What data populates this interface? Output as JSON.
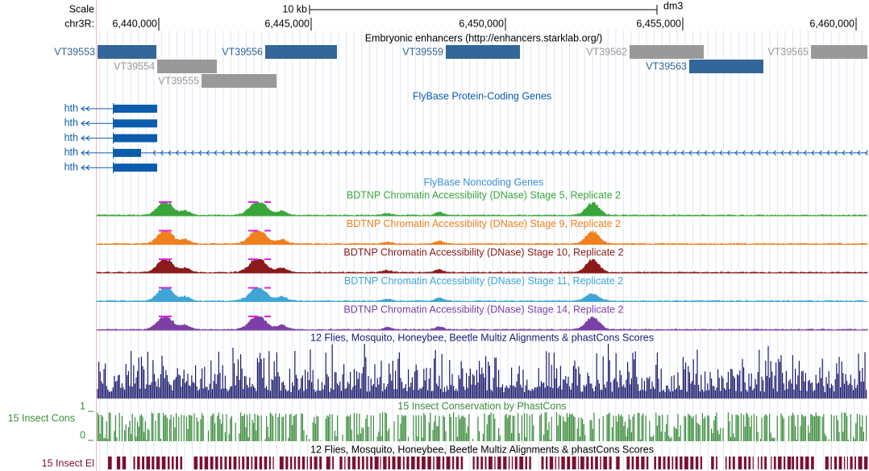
{
  "header": {
    "scale": "Scale",
    "scale_bar": "10 kb",
    "assembly": "dm3",
    "chrom": "chr3R:",
    "positions": [
      "6,440,000",
      "6,445,000",
      "6,450,000",
      "6,455,000",
      "6,460,000"
    ]
  },
  "enhancers": {
    "title": "Embryonic enhancers (http://enhancers.starklab.org/)",
    "items": [
      {
        "label": "VT39553",
        "color": "#336699"
      },
      {
        "label": "VT39554",
        "color": "#999999"
      },
      {
        "label": "VT39555",
        "color": "#999999"
      },
      {
        "label": "VT39556",
        "color": "#336699"
      },
      {
        "label": "VT39559",
        "color": "#336699"
      },
      {
        "label": "VT39562",
        "color": "#999999"
      },
      {
        "label": "VT39563",
        "color": "#336699"
      },
      {
        "label": "VT39565",
        "color": "#999999"
      }
    ]
  },
  "genes": {
    "title": "FlyBase Protein-Coding Genes",
    "color": "#0c5cad",
    "rows": [
      "hth",
      "hth",
      "hth",
      "hth",
      "hth"
    ]
  },
  "noncoding": {
    "title": "FlyBase Noncoding Genes",
    "color": "#3a8fd6"
  },
  "dnase": {
    "tracks": [
      {
        "title": "BDTNP Chromatin Accessibility (DNase) Stage 5, Replicate 2",
        "color": "#3aa63a"
      },
      {
        "title": "BDTNP Chromatin Accessibility (DNase) Stage 9, Replicate 2",
        "color": "#f0801e"
      },
      {
        "title": "BDTNP Chromatin Accessibility (DNase) Stage 10, Replicate 2",
        "color": "#8b1a1a"
      },
      {
        "title": "BDTNP Chromatin Accessibility (DNase) Stage 11, Replicate 2",
        "color": "#3fa5d6"
      },
      {
        "title": "BDTNP Chromatin Accessibility (DNase) Stage 14, Replicate 2",
        "color": "#7b3fa6"
      }
    ]
  },
  "multiz": {
    "title": "12 Flies, Mosquito, Honeybee, Beetle Multiz Alignments & phastCons Scores",
    "color": "#1a1a6e"
  },
  "cons": {
    "title": "15 Insect Conservation by PhastCons",
    "label": "15 Insect Cons",
    "axis_top": "1",
    "axis_bottom": "0",
    "color": "#3c8c3c"
  },
  "elements": {
    "title": "12 Flies, Mosquito, Honeybee, Beetle Multiz Alignments & phastCons Scores",
    "label": "15 Insect El",
    "color": "#7a1030"
  }
}
